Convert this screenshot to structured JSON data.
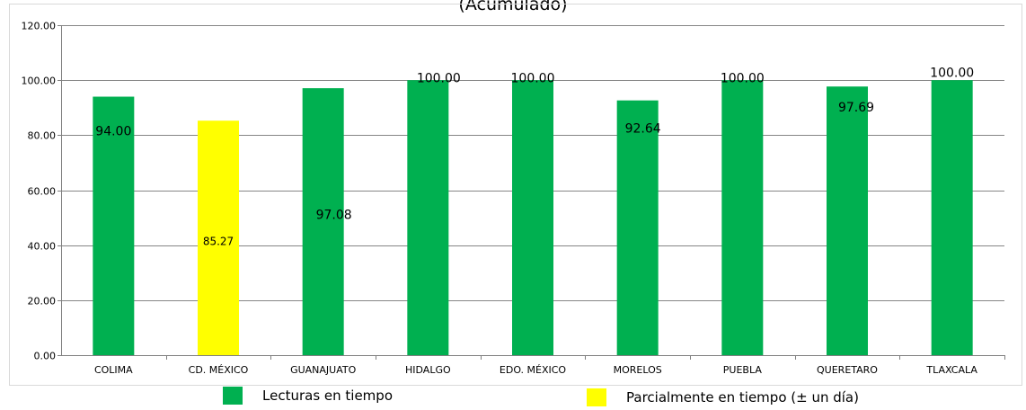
{
  "chart_data": {
    "type": "bar",
    "title_fragment": "(Acumulado)",
    "categories": [
      "COLIMA",
      "CD. MÉXICO",
      "GUANAJUATO",
      "HIDALGO",
      "EDO. MÉXICO",
      "MORELOS",
      "PUEBLA",
      "QUERETARO",
      "TLAXCALA"
    ],
    "values": [
      94.0,
      85.27,
      97.08,
      100.0,
      100.0,
      92.64,
      100.0,
      97.69,
      100.0
    ],
    "value_labels": [
      "94.00",
      "85.27",
      "97.08",
      "100.00",
      "100.00",
      "92.64",
      "100.00",
      "97.69",
      "100.00"
    ],
    "bar_status": [
      "on_time",
      "partial",
      "on_time",
      "on_time",
      "on_time",
      "on_time",
      "on_time",
      "on_time",
      "on_time"
    ],
    "ylim": [
      0,
      120
    ],
    "yticks": [
      "0.00",
      "20.00",
      "40.00",
      "60.00",
      "80.00",
      "100.00",
      "120.00"
    ],
    "grid": true,
    "legend": {
      "placement": "bottom",
      "items": [
        {
          "key": "on_time",
          "label": "Lecturas en tiempo",
          "color": "#00B050"
        },
        {
          "key": "partial",
          "label": "Parcialmente en tiempo (± un día)",
          "color": "#FFFF00"
        }
      ]
    }
  }
}
